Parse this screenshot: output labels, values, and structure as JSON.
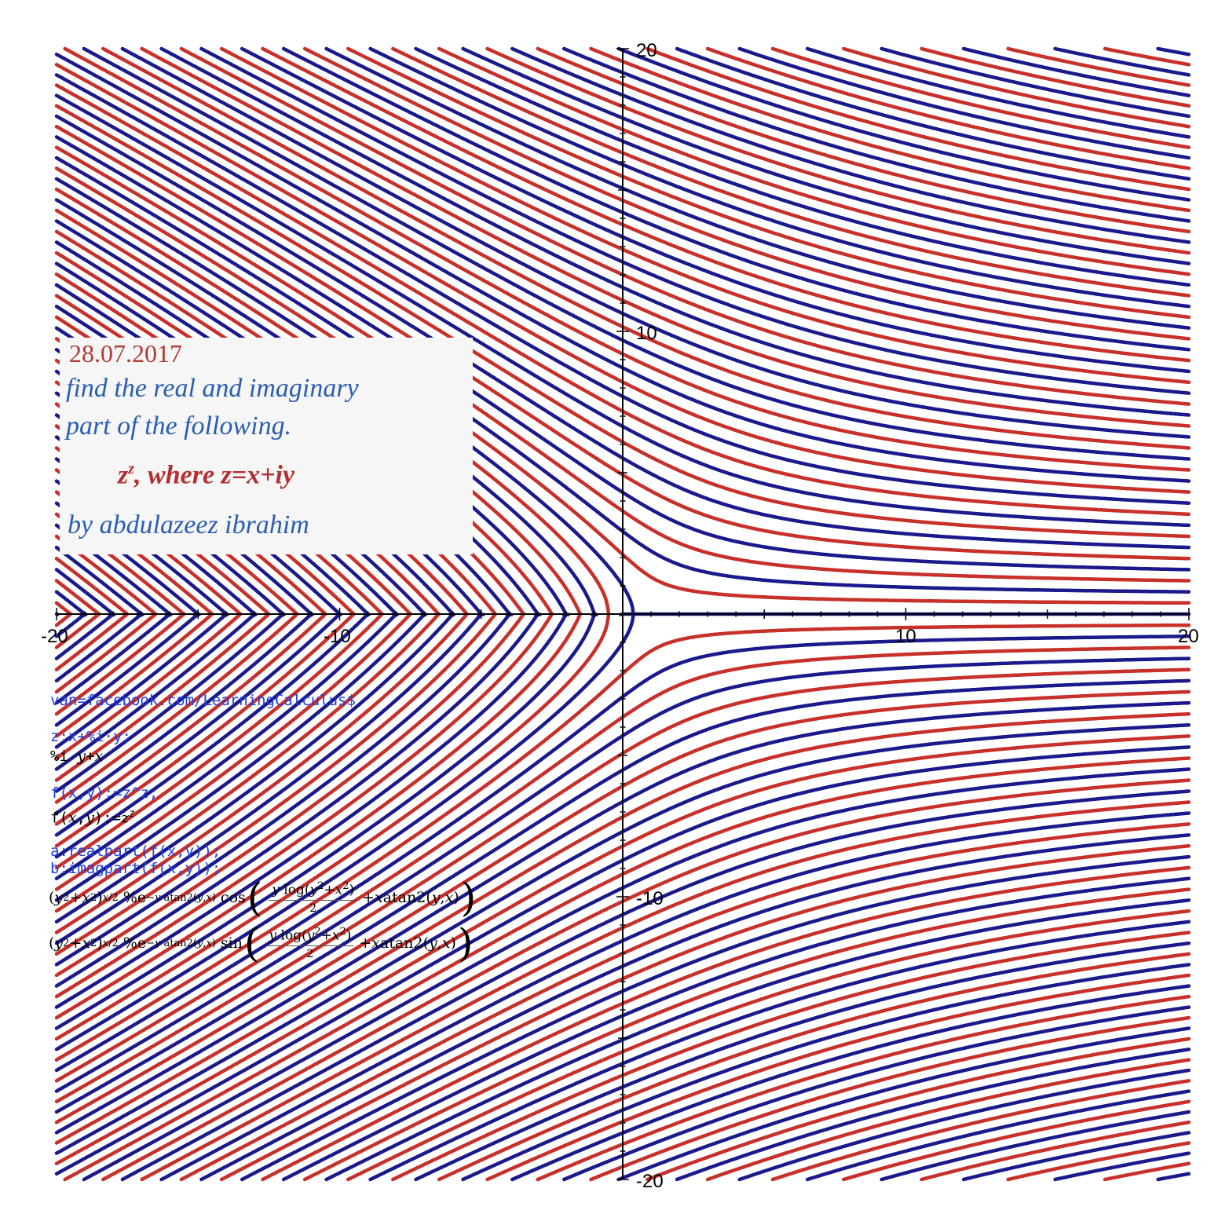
{
  "chart_data": {
    "type": "line",
    "title": "",
    "xlabel": "",
    "ylabel": "",
    "xlim": [
      -20,
      20
    ],
    "ylim": [
      -20,
      20
    ],
    "x_ticks": [
      "-20",
      "-10",
      "10",
      "20"
    ],
    "y_ticks": [
      "20",
      "10",
      "-10",
      "-20"
    ],
    "grid": false,
    "series": [
      {
        "description": "real part of z^z, x+iy",
        "color": "#c8302a"
      },
      {
        "description": "imaginary part of z^z, x+iy",
        "color": "#1a1a8c"
      }
    ],
    "note": "contour plot of z^z on x,y in [-20,20]"
  },
  "annotation": {
    "date": "28.07.2017",
    "question_line1": "find the real and imaginary",
    "question_line2": "part of the following.",
    "expr_base": "z",
    "expr_exp": "z",
    "expr_rest": ", where z=x+iy",
    "author": "by abdulazeez ibrahim",
    "colors": {
      "date": "#b03a34",
      "question": "#2a5db0",
      "expr": "#b33030",
      "author": "#2a5db0"
    }
  },
  "maxima": {
    "input1": "van=facebook.com/LearningCalculus$",
    "input2": "z:x+%i·y;",
    "output2": "%i y+x",
    "input3": "f(x,y):=z^z;",
    "output3": "f(x,y):=z^z",
    "input4a": "a:realpart(f(x,y));",
    "input4b": "b:imagpart(f(x,y));",
    "output_real": "(y²+x²)^(x/2) %e^(−y atan2(y,x)) cos( y log(y²+x²)/2 + x atan2(y,x) )",
    "output_imag": "(y²+x²)^(x/2) %e^(−y atan2(y,x)) sin( y log(y²+x²)/2 + x atan2(y,x) )",
    "input_color": "#1f3fe0",
    "output_color": "#000000"
  }
}
